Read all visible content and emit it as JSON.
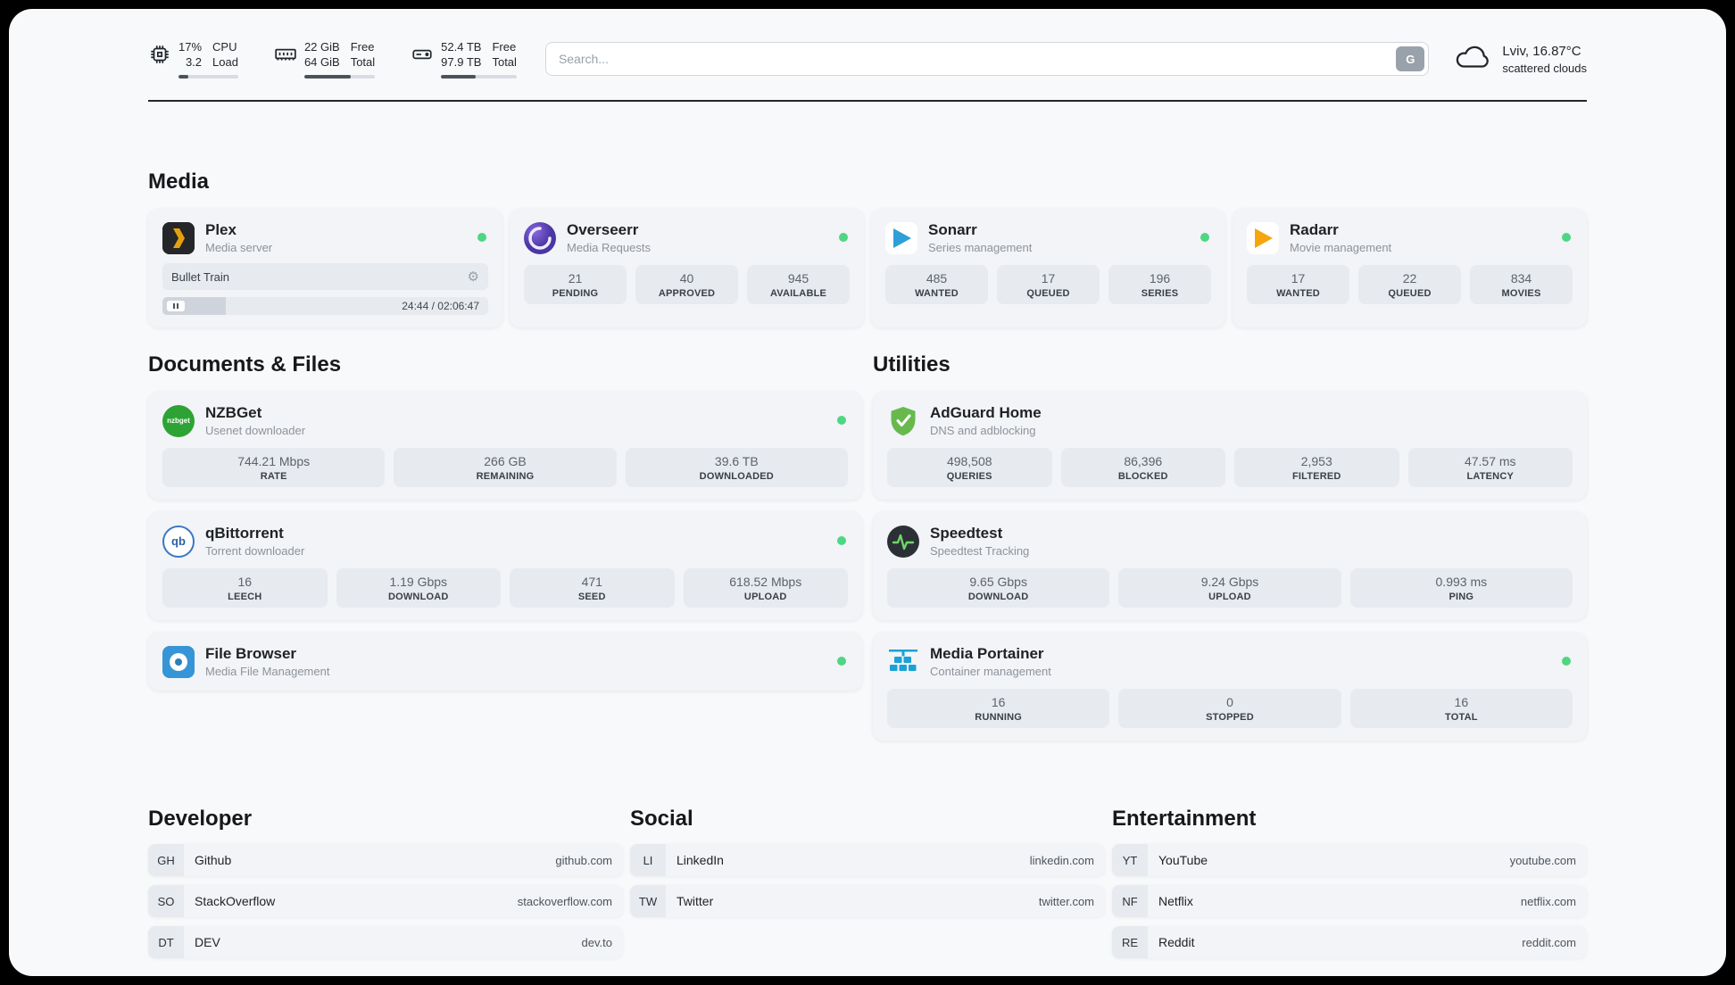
{
  "topbar": {
    "cpu": {
      "usage": "17%",
      "load": "3.2",
      "label1": "CPU",
      "label2": "Load",
      "bar_percent": 17
    },
    "ram": {
      "free": "22 GiB",
      "total": "64 GiB",
      "label1": "Free",
      "label2": "Total",
      "bar_percent": 66
    },
    "disk": {
      "free": "52.4 TB",
      "total": "97.9 TB",
      "label1": "Free",
      "label2": "Total",
      "bar_percent": 46
    },
    "search": {
      "placeholder": "Search...",
      "engine_letter": "G"
    },
    "weather": {
      "location": "Lviv, 16.87°C",
      "condition": "scattered clouds"
    }
  },
  "sections": {
    "media": "Media",
    "documents": "Documents & Files",
    "utilities": "Utilities",
    "developer": "Developer",
    "social": "Social",
    "entertainment": "Entertainment"
  },
  "apps": {
    "plex": {
      "name": "Plex",
      "subtitle": "Media server",
      "now_playing": "Bullet Train",
      "elapsed_total": "24:44 / 02:06:47",
      "progress_percent": 19.5
    },
    "overseerr": {
      "name": "Overseerr",
      "subtitle": "Media Requests",
      "stats": [
        {
          "value": "21",
          "label": "PENDING"
        },
        {
          "value": "40",
          "label": "APPROVED"
        },
        {
          "value": "945",
          "label": "AVAILABLE"
        }
      ]
    },
    "sonarr": {
      "name": "Sonarr",
      "subtitle": "Series management",
      "stats": [
        {
          "value": "485",
          "label": "WANTED"
        },
        {
          "value": "17",
          "label": "QUEUED"
        },
        {
          "value": "196",
          "label": "SERIES"
        }
      ]
    },
    "radarr": {
      "name": "Radarr",
      "subtitle": "Movie management",
      "stats": [
        {
          "value": "17",
          "label": "WANTED"
        },
        {
          "value": "22",
          "label": "QUEUED"
        },
        {
          "value": "834",
          "label": "MOVIES"
        }
      ]
    },
    "nzbget": {
      "name": "NZBGet",
      "subtitle": "Usenet downloader",
      "icon_text": "nzbget",
      "stats": [
        {
          "value": "744.21 Mbps",
          "label": "RATE"
        },
        {
          "value": "266 GB",
          "label": "REMAINING"
        },
        {
          "value": "39.6 TB",
          "label": "DOWNLOADED"
        }
      ]
    },
    "qbittorrent": {
      "name": "qBittorrent",
      "subtitle": "Torrent downloader",
      "icon_text": "qb",
      "stats": [
        {
          "value": "16",
          "label": "LEECH"
        },
        {
          "value": "1.19 Gbps",
          "label": "DOWNLOAD"
        },
        {
          "value": "471",
          "label": "SEED"
        },
        {
          "value": "618.52 Mbps",
          "label": "UPLOAD"
        }
      ]
    },
    "filebrowser": {
      "name": "File Browser",
      "subtitle": "Media File Management"
    },
    "adguard": {
      "name": "AdGuard Home",
      "subtitle": "DNS and adblocking",
      "stats": [
        {
          "value": "498,508",
          "label": "QUERIES"
        },
        {
          "value": "86,396",
          "label": "BLOCKED"
        },
        {
          "value": "2,953",
          "label": "FILTERED"
        },
        {
          "value": "47.57 ms",
          "label": "LATENCY"
        }
      ]
    },
    "speedtest": {
      "name": "Speedtest",
      "subtitle": "Speedtest Tracking",
      "stats": [
        {
          "value": "9.65 Gbps",
          "label": "DOWNLOAD"
        },
        {
          "value": "9.24 Gbps",
          "label": "UPLOAD"
        },
        {
          "value": "0.993 ms",
          "label": "PING"
        }
      ]
    },
    "portainer": {
      "name": "Media Portainer",
      "subtitle": "Container management",
      "stats": [
        {
          "value": "16",
          "label": "RUNNING"
        },
        {
          "value": "0",
          "label": "STOPPED"
        },
        {
          "value": "16",
          "label": "TOTAL"
        }
      ]
    }
  },
  "bookmarks": {
    "developer": [
      {
        "abbr": "GH",
        "name": "Github",
        "url": "github.com"
      },
      {
        "abbr": "SO",
        "name": "StackOverflow",
        "url": "stackoverflow.com"
      },
      {
        "abbr": "DT",
        "name": "DEV",
        "url": "dev.to"
      }
    ],
    "social": [
      {
        "abbr": "LI",
        "name": "LinkedIn",
        "url": "linkedin.com"
      },
      {
        "abbr": "TW",
        "name": "Twitter",
        "url": "twitter.com"
      }
    ],
    "entertainment": [
      {
        "abbr": "YT",
        "name": "YouTube",
        "url": "youtube.com"
      },
      {
        "abbr": "NF",
        "name": "Netflix",
        "url": "netflix.com"
      },
      {
        "abbr": "RE",
        "name": "Reddit",
        "url": "reddit.com"
      }
    ]
  },
  "icons": {
    "gear": "⚙"
  },
  "colors": {
    "status_online": "#4fd683",
    "plex_accent": "#e5a00d"
  }
}
